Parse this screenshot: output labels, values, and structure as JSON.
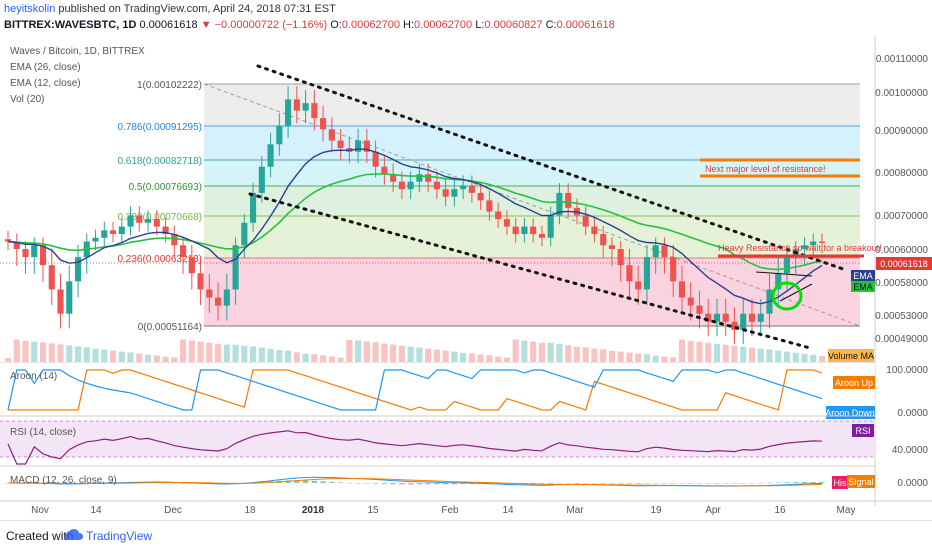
{
  "header": {
    "author": "heyitskolin",
    "published": "published on TradingView.com, April 24, 2018 07:31 EST",
    "symbol": "BITTREX:WAVESBTC, 1D",
    "price": "0.00061618",
    "change": "−0.00000722 (−1.16%)",
    "o_label": "O:",
    "o": "0.00062700",
    "h_label": "H:",
    "h": "0.00062700",
    "l_label": "L:",
    "l": "0.00060827",
    "c_label": "C:",
    "c": "0.00061618"
  },
  "legend": {
    "title": "Waves / Bitcoin, 1D, BITTREX",
    "ema26": "EMA (26, close)",
    "ema12": "EMA (12, close)",
    "vol": "Vol (20)",
    "aroon": "Aroon (14)",
    "rsi": "RSI (14, close)",
    "macd": "MACD (12, 26, close, 9)"
  },
  "badges": {
    "ema1": "EMA",
    "ema2": "EMA",
    "price": "0.00061618",
    "volume": "Volume MA",
    "aroon_up": "Aroon Up",
    "aroon_down": "Aroon Down",
    "rsi": "RSI",
    "hist": "His",
    "signal": "Signal"
  },
  "annotations": {
    "resistance": "Next major level of resistance!",
    "heavy": "Heavy Resistance so wait for a breakout!"
  },
  "footer": {
    "made_with": "Created with",
    "brand": "TradingView"
  },
  "colors": {
    "up": "#26a69a",
    "down": "#ef5350",
    "ema26": "#27c13c",
    "ema12": "#2a3f8f",
    "aroon_up": "#f57c00",
    "aroon_down": "#2196f3",
    "rsi": "#8e1f7a",
    "annotation": "#e53935"
  },
  "chart_data": {
    "type": "candlestick",
    "x_ticks": [
      "Nov",
      "14",
      "Dec",
      "18",
      "2018",
      "15",
      "Feb",
      "14",
      "Mar",
      "19",
      "Apr",
      "16",
      "May"
    ],
    "y_ticks": [
      "0.00110000",
      "0.00100000",
      "0.00090000",
      "0.00080000",
      "0.00070000",
      "0.00060000",
      "0.00058000",
      "0.00053000",
      "0.00049000"
    ],
    "rsi_ticks": [
      "40.0000"
    ],
    "aroon_ticks": [
      "100.0000",
      "0.0000"
    ],
    "macd_ticks": [
      "0.0000"
    ],
    "fibonacci": [
      {
        "label": "1(0.00102222)",
        "value": 0.00102222
      },
      {
        "label": "0.786(0.00091295)",
        "value": 0.00091295
      },
      {
        "label": "0.618(0.00082718)",
        "value": 0.00082718
      },
      {
        "label": "0.5(0.00076693)",
        "value": 0.00076693
      },
      {
        "label": "0.382(0.00070668)",
        "value": 0.00070668
      },
      {
        "label": "0.236(0.00063213)",
        "value": 0.00063213
      },
      {
        "label": "0(0.00051164)",
        "value": 0.00051164
      }
    ],
    "close": [
      0.00062,
      0.0006,
      0.00059,
      0.00061,
      0.00058,
      0.00055,
      0.00052,
      0.00056,
      0.00059,
      0.00062,
      0.00063,
      0.00065,
      0.00064,
      0.00066,
      0.00069,
      0.00067,
      0.00068,
      0.00066,
      0.00064,
      0.00061,
      0.00059,
      0.00057,
      0.00055,
      0.00054,
      0.00053,
      0.00055,
      0.00061,
      0.00067,
      0.00075,
      0.00082,
      0.00088,
      0.00093,
      0.001,
      0.00097,
      0.00099,
      0.00095,
      0.00092,
      0.00089,
      0.00087,
      0.00086,
      0.00089,
      0.00086,
      0.00082,
      0.0008,
      0.00078,
      0.00076,
      0.00078,
      0.0008,
      0.00078,
      0.00076,
      0.00074,
      0.00076,
      0.00077,
      0.00075,
      0.00073,
      0.0007,
      0.00068,
      0.00066,
      0.00064,
      0.00066,
      0.00064,
      0.00063,
      0.00069,
      0.00075,
      0.00071,
      0.00069,
      0.00066,
      0.00064,
      0.00061,
      0.0006,
      0.00058,
      0.00056,
      0.00055,
      0.00059,
      0.00061,
      0.00059,
      0.00056,
      0.00054,
      0.00053,
      0.00052,
      0.00051,
      0.00052,
      0.00051,
      0.0005,
      0.00052,
      0.00051,
      0.00052,
      0.00055,
      0.00057,
      0.00059,
      0.0006,
      0.00061,
      0.00062,
      0.00061618
    ]
  }
}
